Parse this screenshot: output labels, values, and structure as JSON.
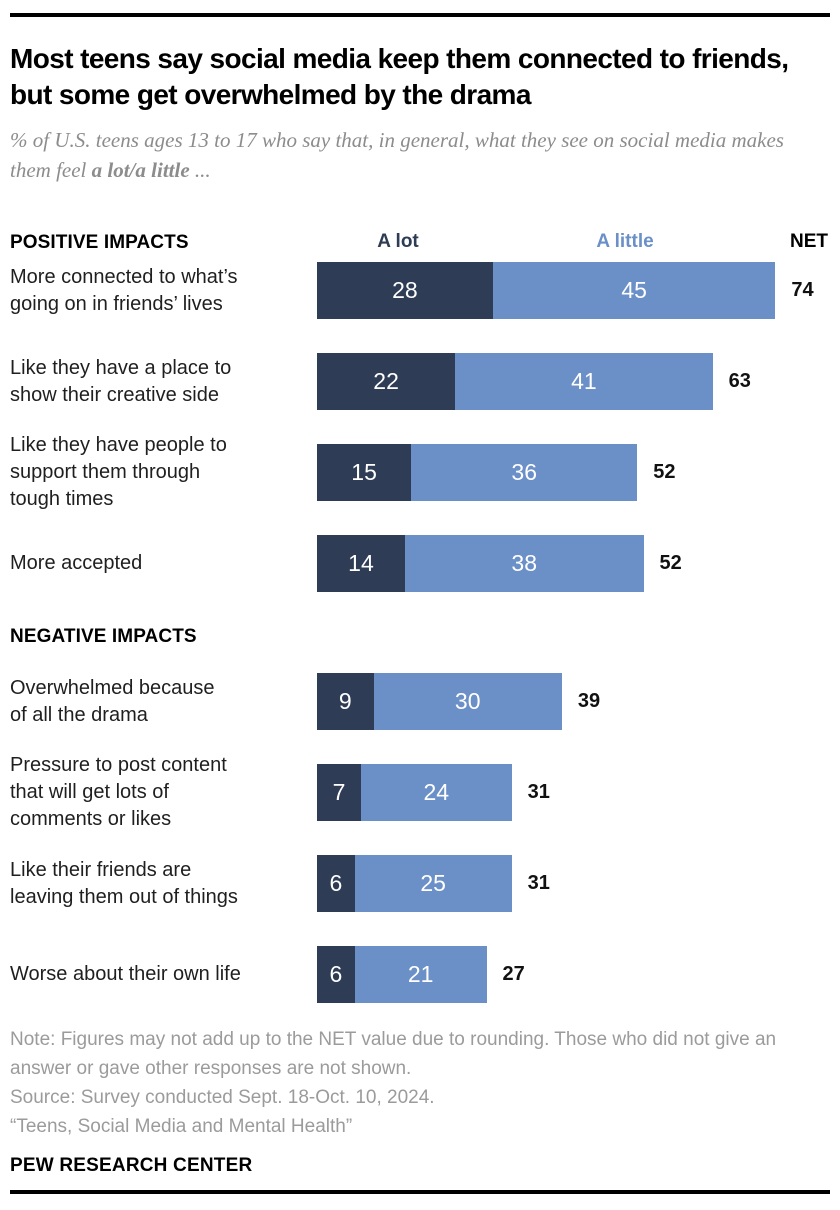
{
  "page": {
    "title": "Most teens say social media keep them connected to friends, but some get overwhelmed by the drama",
    "subtitle_prefix": "% of U.S. teens ages 13 to 17 who say that, in general, what they see on social media makes them feel ",
    "subtitle_bold": "a lot/a little",
    "subtitle_suffix": " ..."
  },
  "legend": {
    "a_lot": "A lot",
    "a_little": "A little",
    "net": "NET"
  },
  "colors": {
    "a_lot": "#2e3c55",
    "a_little": "#6b90c8"
  },
  "chart_data": {
    "type": "bar",
    "orientation": "horizontal",
    "stacked": true,
    "series_names": [
      "A lot",
      "A little"
    ],
    "value_unit": "percent",
    "axis_hidden": true,
    "sections": [
      {
        "title": "POSITIVE IMPACTS",
        "rows": [
          {
            "label": "More connected to what’s\ngoing on in friends’ lives",
            "a_lot": 28,
            "a_little": 45,
            "net": 74
          },
          {
            "label": "Like they have a place to\nshow their creative side",
            "a_lot": 22,
            "a_little": 41,
            "net": 63
          },
          {
            "label": "Like they have people to\nsupport them through\ntough times",
            "a_lot": 15,
            "a_little": 36,
            "net": 52
          },
          {
            "label": "More accepted",
            "a_lot": 14,
            "a_little": 38,
            "net": 52
          }
        ]
      },
      {
        "title": "NEGATIVE IMPACTS",
        "rows": [
          {
            "label": "Overwhelmed because\nof all the drama",
            "a_lot": 9,
            "a_little": 30,
            "net": 39
          },
          {
            "label": "Pressure to post content\nthat will get lots of\ncomments or likes",
            "a_lot": 7,
            "a_little": 24,
            "net": 31
          },
          {
            "label": "Like their friends are\nleaving them out of things",
            "a_lot": 6,
            "a_little": 25,
            "net": 31
          },
          {
            "label": "Worse about their own life",
            "a_lot": 6,
            "a_little": 21,
            "net": 27
          }
        ]
      }
    ]
  },
  "footer": {
    "note": "Note: Figures may not add up to the NET value due to rounding. Those who did not give an\nanswer or gave other responses are not shown.",
    "source": "Source: Survey conducted Sept. 18-Oct. 10, 2024.",
    "report": "“Teens, Social Media and Mental Health”",
    "brand": "PEW RESEARCH CENTER"
  }
}
